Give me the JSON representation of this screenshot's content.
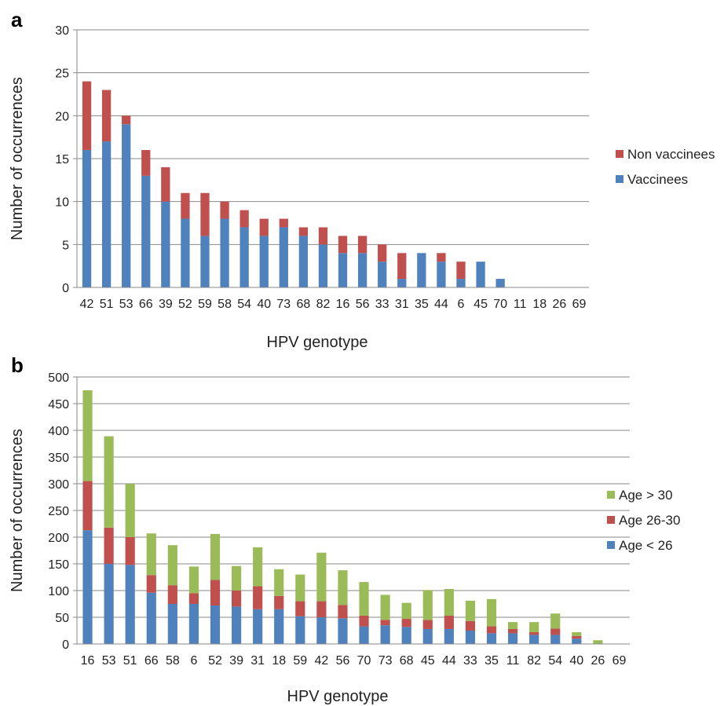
{
  "colors": {
    "vaccinees": "#4F81BD",
    "non_vaccinees": "#C0504D",
    "age_lt_26": "#4F81BD",
    "age_26_30": "#C0504D",
    "age_gt_30": "#9BBB59",
    "grid": "#888888"
  },
  "chart_data": [
    {
      "panel": "a",
      "type": "bar",
      "stacked": true,
      "categories": [
        "42",
        "51",
        "53",
        "66",
        "39",
        "52",
        "59",
        "58",
        "54",
        "40",
        "73",
        "68",
        "82",
        "16",
        "56",
        "33",
        "31",
        "35",
        "44",
        "6",
        "45",
        "70",
        "11",
        "18",
        "26",
        "69"
      ],
      "series": [
        {
          "name": "Vaccinees",
          "values": [
            16,
            17,
            19,
            13,
            10,
            8,
            6,
            8,
            7,
            6,
            7,
            6,
            5,
            4,
            4,
            3,
            1,
            4,
            3,
            1,
            3,
            1,
            0,
            0,
            0,
            0
          ]
        },
        {
          "name": "Non vaccinees",
          "values": [
            8,
            6,
            1,
            3,
            4,
            3,
            5,
            2,
            2,
            2,
            1,
            1,
            2,
            2,
            2,
            2,
            3,
            0,
            1,
            2,
            0,
            0,
            0,
            0,
            0,
            0
          ]
        }
      ],
      "xlabel": "HPV genotype",
      "ylabel": "Number of occurrences",
      "ylim": [
        0,
        30
      ],
      "yticks": [
        0,
        5,
        10,
        15,
        20,
        25,
        30
      ],
      "grid": true,
      "legend": "right"
    },
    {
      "panel": "b",
      "type": "bar",
      "stacked": true,
      "categories": [
        "16",
        "53",
        "51",
        "66",
        "58",
        "6",
        "52",
        "39",
        "31",
        "18",
        "59",
        "42",
        "56",
        "70",
        "73",
        "68",
        "45",
        "44",
        "33",
        "35",
        "11",
        "82",
        "54",
        "40",
        "26",
        "69"
      ],
      "series": [
        {
          "name": "Age < 26",
          "values": [
            213,
            150,
            148,
            96,
            75,
            75,
            72,
            70,
            65,
            65,
            52,
            50,
            48,
            33,
            35,
            32,
            28,
            28,
            25,
            20,
            20,
            17,
            17,
            10,
            0,
            0
          ]
        },
        {
          "name": "Age 26-30",
          "values": [
            92,
            68,
            52,
            33,
            35,
            20,
            48,
            30,
            43,
            25,
            28,
            30,
            25,
            20,
            10,
            15,
            17,
            25,
            18,
            13,
            8,
            5,
            12,
            5,
            0,
            0
          ]
        },
        {
          "name": "Age > 30",
          "values": [
            170,
            171,
            100,
            78,
            75,
            50,
            86,
            46,
            73,
            50,
            50,
            91,
            65,
            63,
            47,
            30,
            56,
            50,
            38,
            51,
            13,
            19,
            28,
            7,
            7,
            0
          ]
        }
      ],
      "xlabel": "HPV genotype",
      "ylabel": "Number of occurrences",
      "ylim": [
        0,
        500
      ],
      "yticks": [
        0,
        50,
        100,
        150,
        200,
        250,
        300,
        350,
        400,
        450,
        500
      ],
      "grid": true,
      "legend": "right"
    }
  ]
}
